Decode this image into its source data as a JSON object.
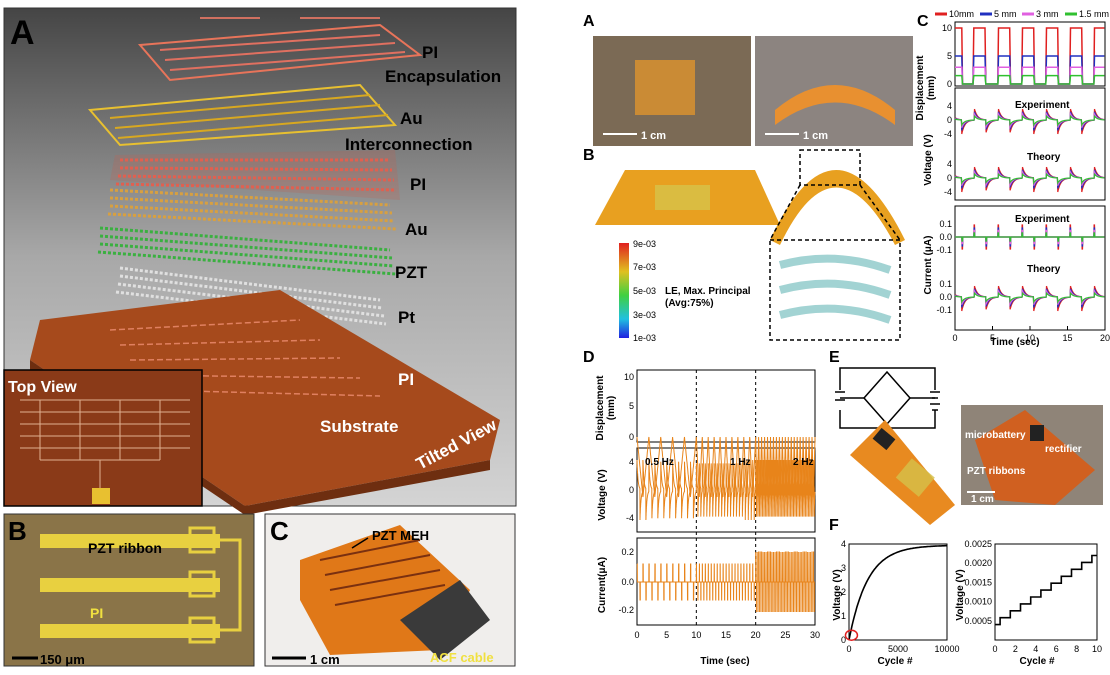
{
  "left": {
    "panel_A": {
      "letter": "A",
      "layers": [
        "PI",
        "Encapsulation",
        "Au",
        "Interconnection",
        "PI",
        "Au",
        "PZT",
        "Pt",
        "PI",
        "Substrate"
      ],
      "top_view": "Top View",
      "tilted_view": "Tilted View"
    },
    "panel_B": {
      "letter": "B",
      "ribbon": "PZT ribbon",
      "pi": "PI",
      "scale": "150 μm"
    },
    "panel_C": {
      "letter": "C",
      "meh": "PZT MEH",
      "acf": "ACF cable",
      "scale": "1 cm"
    }
  },
  "right": {
    "A": {
      "letter": "A",
      "scale": "1 cm"
    },
    "B": {
      "letter": "B",
      "colorbar_ticks": [
        "9e-03",
        "7e-03",
        "5e-03",
        "3e-03",
        "1e-03"
      ],
      "label1": "LE, Max. Principal",
      "label2": "(Avg:75%)"
    },
    "C": {
      "letter": "C",
      "legend": [
        "10mm",
        "5 mm",
        "3 mm",
        "1.5 mm"
      ],
      "ylabel_disp1": "Displacement",
      "ylabel_disp2": "(mm)",
      "ylabel_volt": "Voltage (V)",
      "ylabel_curr": "Current (μA)",
      "experiment": "Experiment",
      "theory": "Theory",
      "xlabel": "Time (sec)",
      "disp_ticks": [
        "10",
        "5",
        "0"
      ],
      "volt_ticks": [
        "4",
        "0",
        "-4",
        "4",
        "0",
        "-4"
      ],
      "curr_ticks": [
        "0.1",
        "0.0",
        "-0.1",
        "0.1",
        "0.0",
        "-0.1"
      ],
      "x_ticks": [
        "0",
        "5",
        "10",
        "15",
        "20"
      ]
    },
    "D": {
      "letter": "D",
      "ylabel_disp1": "Displacement",
      "ylabel_disp2": "(mm)",
      "ylabel_volt": "Voltage (V)",
      "ylabel_curr": "Current(μA)",
      "freqs": [
        "0.5 Hz",
        "1 Hz",
        "2 Hz"
      ],
      "xlabel": "Time (sec)",
      "disp_ticks": [
        "10",
        "5",
        "0"
      ],
      "volt_ticks": [
        "4",
        "0",
        "-4"
      ],
      "curr_ticks": [
        "0.2",
        "0.0",
        "-0.2"
      ],
      "x_ticks": [
        "0",
        "5",
        "10",
        "15",
        "20",
        "25",
        "30"
      ]
    },
    "E": {
      "letter": "E",
      "microbattery": "microbattery",
      "rectifier": "rectifier",
      "pzt": "PZT ribbons",
      "scale": "1 cm"
    },
    "F": {
      "letter": "F",
      "ylabel": "Voltage (V)",
      "xlabel": "Cycle #",
      "p1_yticks": [
        "4",
        "3",
        "2",
        "1",
        "0"
      ],
      "p1_xticks": [
        "0",
        "5000",
        "10000"
      ],
      "p2_yticks": [
        "0.0025",
        "0.0020",
        "0.0015",
        "0.0010",
        "0.0005"
      ],
      "p2_xticks": [
        "0",
        "2",
        "4",
        "6",
        "8",
        "10"
      ]
    }
  },
  "chart_data": [
    {
      "type": "line",
      "x": [
        0,
        5,
        10,
        15,
        20
      ],
      "series": [
        {
          "name": "10mm",
          "values": [
            0,
            10,
            0,
            10,
            0
          ]
        },
        {
          "name": "5 mm",
          "values": [
            0,
            5,
            0,
            5,
            0
          ]
        },
        {
          "name": "3 mm",
          "values": [
            0,
            3,
            0,
            3,
            0
          ]
        },
        {
          "name": "1.5 mm",
          "values": [
            0,
            1.5,
            0,
            1.5,
            0
          ]
        }
      ],
      "xlabel": "Time (sec)",
      "ylabel": "Displacement (mm)",
      "ylim": [
        0,
        10
      ],
      "xlim": [
        0,
        20
      ]
    },
    {
      "type": "line",
      "x": [
        0,
        10,
        20,
        30
      ],
      "xlabel": "Time (sec)",
      "ylabel": "Displacement (mm)",
      "ylim": [
        0,
        10
      ],
      "xlim": [
        0,
        30
      ],
      "annotations": [
        "0.5 Hz",
        "1 Hz",
        "2 Hz"
      ]
    },
    {
      "type": "line",
      "x": [
        0,
        1000,
        2000,
        3000,
        5000,
        7500,
        10000
      ],
      "series": [
        {
          "values": [
            0,
            1.5,
            2.5,
            3.1,
            3.7,
            3.9,
            3.95
          ]
        }
      ],
      "xlabel": "Cycle #",
      "ylabel": "Voltage (V)",
      "ylim": [
        0,
        4
      ],
      "xlim": [
        0,
        10000
      ]
    },
    {
      "type": "line",
      "x": [
        0,
        1,
        2,
        3,
        4,
        5,
        6,
        7,
        8,
        9,
        10
      ],
      "series": [
        {
          "values": [
            0.0004,
            0.00058,
            0.00076,
            0.00094,
            0.00112,
            0.0013,
            0.00148,
            0.00166,
            0.00184,
            0.00202,
            0.0022
          ]
        }
      ],
      "xlabel": "Cycle #",
      "ylabel": "Voltage (V)",
      "ylim": [
        0,
        0.0025
      ],
      "xlim": [
        0,
        10
      ]
    }
  ]
}
